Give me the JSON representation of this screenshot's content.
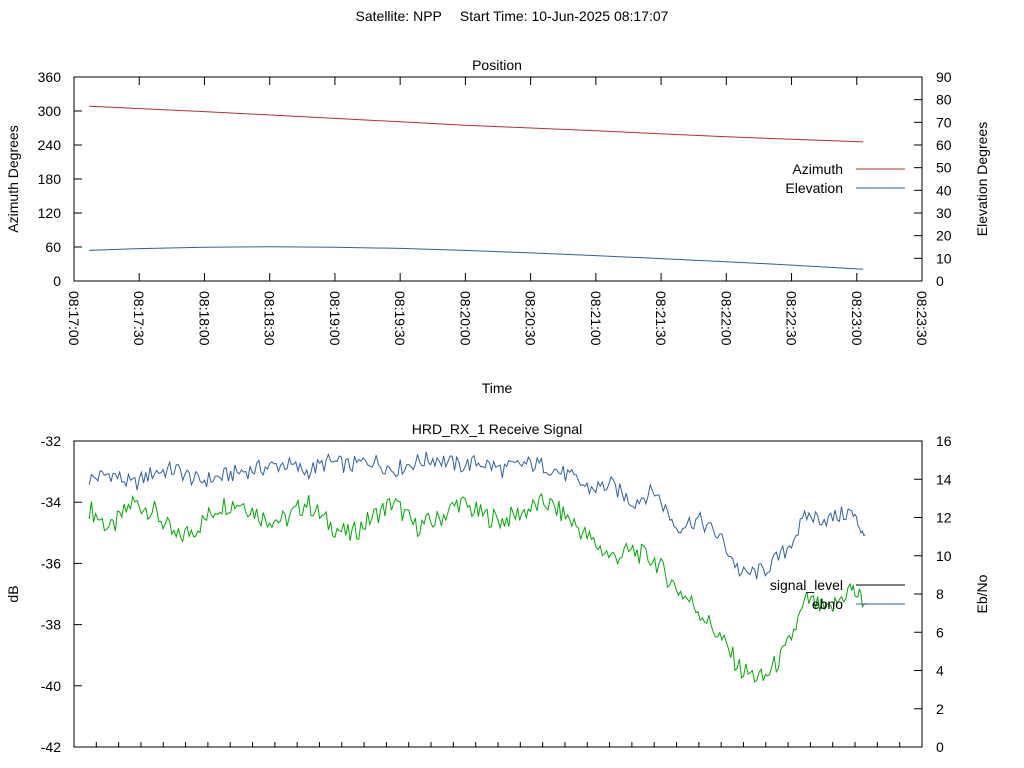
{
  "header": {
    "satellite_label": "Satellite: NPP",
    "start_time_label": "Start Time: 10-Jun-2025 08:17:07"
  },
  "colors": {
    "azimuth": "#b03030",
    "elevation": "#3060a0",
    "signal_level": "#00aa00",
    "ebno": "#3060a0",
    "legend_signal_level": "#000000",
    "axis": "#000000"
  },
  "chart_data": [
    {
      "type": "line",
      "title": "Position",
      "xlabel": "Time",
      "ylabel": "Azimuth Degrees",
      "y2label": "Elevation Degrees",
      "ylim": [
        0,
        360
      ],
      "y2lim": [
        0,
        90
      ],
      "yticks": [
        0,
        60,
        120,
        180,
        240,
        300,
        360
      ],
      "y2ticks": [
        0,
        10,
        20,
        30,
        40,
        50,
        60,
        70,
        80,
        90
      ],
      "xlim": [
        0,
        390
      ],
      "xtick_values": [
        0,
        30,
        60,
        90,
        120,
        150,
        180,
        210,
        240,
        270,
        300,
        330,
        360,
        390
      ],
      "xtick_labels": [
        "08:17:00",
        "08:17:30",
        "08:18:00",
        "08:18:30",
        "08:19:00",
        "08:19:30",
        "08:20:00",
        "08:20:30",
        "08:21:00",
        "08:21:30",
        "08:22:00",
        "08:22:30",
        "08:23:00",
        "08:23:30"
      ],
      "legend_position": "right",
      "series": [
        {
          "name": "Azimuth",
          "axis": "y",
          "x": [
            7,
            60,
            120,
            180,
            240,
            300,
            363
          ],
          "values": [
            308.5,
            299,
            287,
            275,
            265,
            254.5,
            245.5
          ]
        },
        {
          "name": "Elevation",
          "axis": "y2",
          "x": [
            7,
            30,
            60,
            90,
            120,
            150,
            180,
            210,
            240,
            270,
            300,
            330,
            363
          ],
          "values": [
            13.5,
            14.3,
            14.9,
            15.1,
            14.9,
            14.4,
            13.5,
            12.4,
            11.2,
            9.9,
            8.5,
            7.0,
            5.2
          ]
        }
      ]
    },
    {
      "type": "line",
      "title": "HRD_RX_1 Receive Signal",
      "xlabel": "",
      "ylabel": "dB",
      "y2label": "Eb/No",
      "ylim": [
        -42,
        -32
      ],
      "y2lim": [
        0,
        16
      ],
      "yticks": [
        -42,
        -40,
        -38,
        -36,
        -34,
        -32
      ],
      "y2ticks": [
        0,
        2,
        4,
        6,
        8,
        10,
        12,
        14,
        16
      ],
      "xlim": [
        0,
        390
      ],
      "minor_xticks": 37,
      "legend_position": "right",
      "series": [
        {
          "name": "signal_level",
          "axis": "y",
          "x": [
            7,
            17,
            27,
            37,
            47,
            57,
            67,
            77,
            87,
            97,
            107,
            117,
            127,
            137,
            147,
            157,
            167,
            177,
            187,
            197,
            207,
            217,
            227,
            237,
            247,
            257,
            267,
            277,
            287,
            297,
            307,
            317,
            327,
            337,
            347,
            357,
            364
          ],
          "values": [
            -34.2,
            -34.9,
            -34.0,
            -34.3,
            -35.2,
            -34.8,
            -34.1,
            -34.0,
            -34.5,
            -34.6,
            -34.0,
            -34.7,
            -35.1,
            -34.5,
            -34.0,
            -34.8,
            -34.6,
            -34.0,
            -34.4,
            -34.6,
            -34.3,
            -34.0,
            -34.5,
            -35.2,
            -35.8,
            -35.6,
            -35.9,
            -36.8,
            -37.5,
            -38.4,
            -39.5,
            -39.8,
            -38.9,
            -37.2,
            -37.6,
            -36.8,
            -37.3
          ]
        },
        {
          "name": "ebno",
          "axis": "y2",
          "x": [
            7,
            17,
            27,
            37,
            47,
            57,
            67,
            77,
            87,
            97,
            107,
            117,
            127,
            137,
            147,
            157,
            167,
            177,
            187,
            197,
            207,
            217,
            227,
            237,
            247,
            257,
            267,
            277,
            287,
            297,
            307,
            317,
            327,
            337,
            347,
            357,
            364
          ],
          "values": [
            14.0,
            14.3,
            13.7,
            14.4,
            14.5,
            13.9,
            14.1,
            14.4,
            14.6,
            14.8,
            14.4,
            14.9,
            14.7,
            15.0,
            14.5,
            14.9,
            15.1,
            14.7,
            14.9,
            14.5,
            14.8,
            14.7,
            14.2,
            13.5,
            13.7,
            12.8,
            13.4,
            11.5,
            11.9,
            11.0,
            9.0,
            9.2,
            10.2,
            12.1,
            11.9,
            12.3,
            11.1
          ]
        }
      ]
    }
  ]
}
